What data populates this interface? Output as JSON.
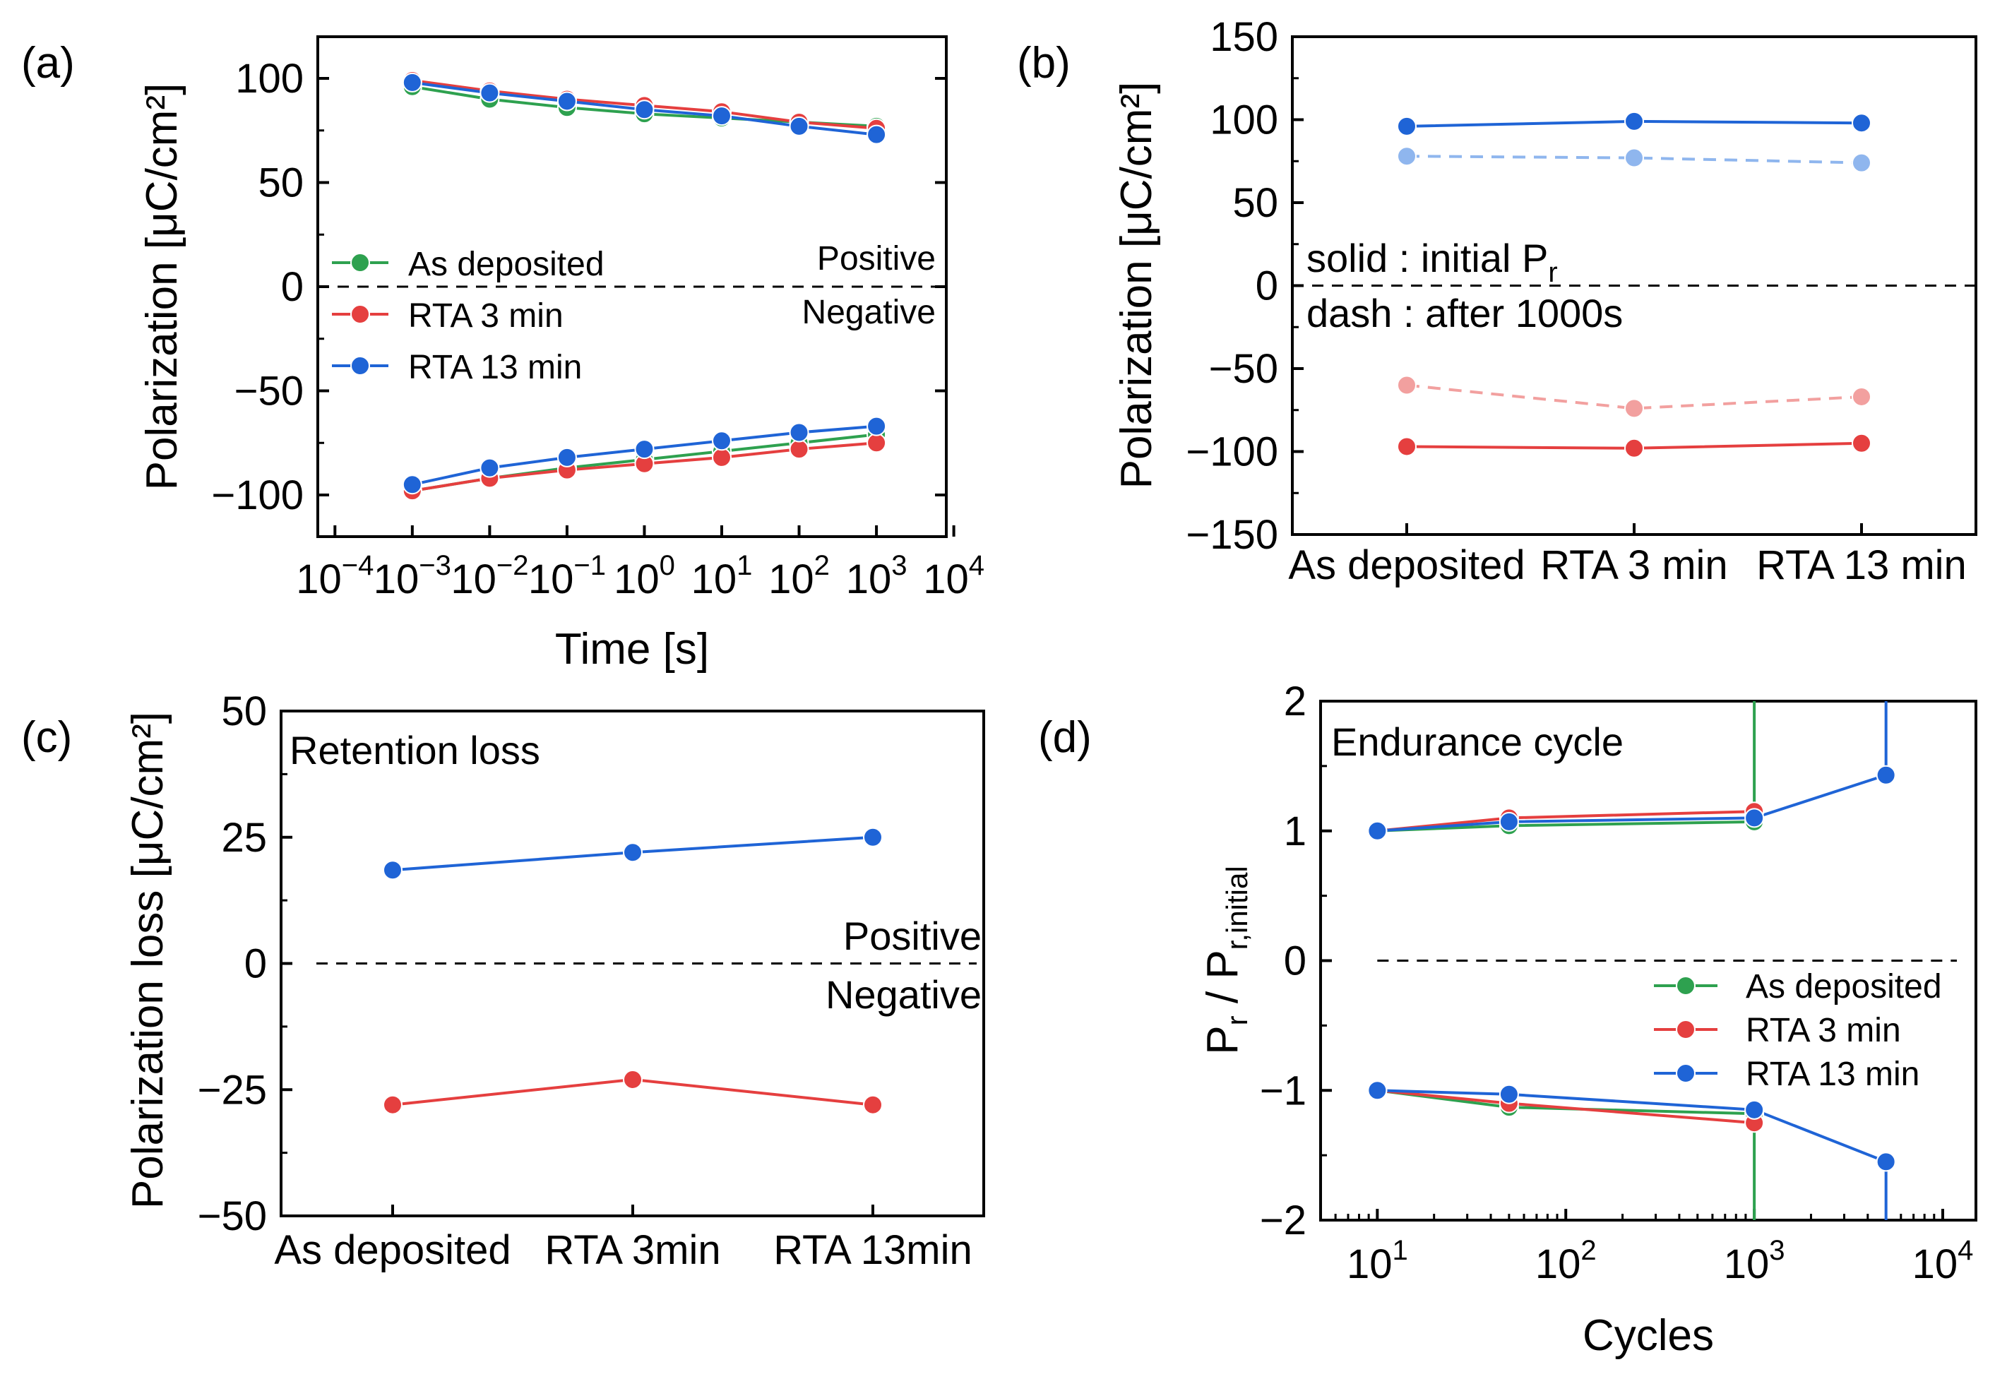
{
  "colors": {
    "green": "#2ea14f",
    "red": "#e53f3f",
    "blue": "#1f64d6",
    "light_blue": "#8fb6ee",
    "light_red": "#f2a09f"
  },
  "chart_data": [
    {
      "panel_label": "(a)",
      "type": "line",
      "x_scale": "log",
      "xlabel": "Time [s]",
      "ylabel": "Polarization [μC/cm²]",
      "xlim": [
        6e-05,
        8000
      ],
      "ylim": [
        -120,
        120
      ],
      "x_ticks": [
        0.0001,
        0.001,
        0.01,
        0.1,
        1,
        10,
        100,
        1000,
        10000
      ],
      "x_tick_labels": [
        [
          "10",
          "−4"
        ],
        [
          "10",
          "−3"
        ],
        [
          "10",
          "−2"
        ],
        [
          "10",
          "−1"
        ],
        [
          "10",
          "0"
        ],
        [
          "10",
          "1"
        ],
        [
          "10",
          "2"
        ],
        [
          "10",
          "3"
        ],
        [
          "10",
          "4"
        ]
      ],
      "y_ticks": [
        100,
        50,
        0,
        -50,
        -100
      ],
      "y_tick_labels": [
        "100",
        "50",
        "0",
        "−50",
        "−100"
      ],
      "x": [
        0.001,
        0.01,
        0.1,
        1,
        10,
        100,
        1000
      ],
      "series": [
        {
          "name": "As deposited",
          "color": "green",
          "positive": [
            96,
            90,
            86,
            83,
            81,
            79,
            77
          ],
          "negative": [
            -98,
            -92,
            -87,
            -83,
            -79,
            -75,
            -71
          ]
        },
        {
          "name": "RTA 3 min",
          "color": "red",
          "positive": [
            99,
            94,
            90,
            87,
            84,
            79,
            76
          ],
          "negative": [
            -98,
            -92,
            -88,
            -85,
            -82,
            -78,
            -75
          ]
        },
        {
          "name": "RTA 13 min",
          "color": "blue",
          "positive": [
            98,
            93,
            89,
            85,
            82,
            77,
            73
          ],
          "negative": [
            -95,
            -87,
            -82,
            -78,
            -74,
            -70,
            -67
          ]
        }
      ],
      "annotations": {
        "positive": "Positive",
        "negative": "Negative"
      },
      "legend": "center-left"
    },
    {
      "panel_label": "(b)",
      "type": "line",
      "categories": [
        "As deposited",
        "RTA 3 min",
        "RTA 13 min"
      ],
      "ylabel": "Polarization [μC/cm²]",
      "ylim": [
        -150,
        150
      ],
      "y_ticks": [
        150,
        100,
        50,
        0,
        -50,
        -100,
        -150
      ],
      "y_tick_labels": [
        "150",
        "100",
        "50",
        "0",
        "−50",
        "−100",
        "−150"
      ],
      "series": [
        {
          "name": "Positive initial Pr",
          "style": "solid",
          "color": "blue",
          "values": [
            96,
            99,
            98
          ]
        },
        {
          "name": "Positive after 1000s",
          "style": "dash",
          "color": "light_blue",
          "values": [
            78,
            77,
            74
          ]
        },
        {
          "name": "Negative after 1000s",
          "style": "dash",
          "color": "light_red",
          "values": [
            -60,
            -74,
            -67
          ]
        },
        {
          "name": "Negative initial Pr",
          "style": "solid",
          "color": "red",
          "values": [
            -97,
            -98,
            -95
          ]
        }
      ],
      "annotations": {
        "solid_prefix": "solid : initial P",
        "solid_sub": "r",
        "dash": "dash : after 1000s"
      }
    },
    {
      "panel_label": "(c)",
      "type": "line",
      "title": "Retention loss",
      "categories": [
        "As deposited",
        "RTA 3min",
        "RTA 13min"
      ],
      "ylabel": "Polarization loss [μC/cm²]",
      "ylim": [
        -50,
        50
      ],
      "y_ticks": [
        50,
        25,
        0,
        -25,
        -50
      ],
      "y_tick_labels": [
        "50",
        "25",
        "0",
        "−25",
        "−50"
      ],
      "series": [
        {
          "name": "Positive",
          "color": "blue",
          "values": [
            18.5,
            22,
            25
          ]
        },
        {
          "name": "Negative",
          "color": "red",
          "values": [
            -28,
            -23,
            -28
          ]
        }
      ],
      "annotations": {
        "positive": "Positive",
        "negative": "Negative"
      }
    },
    {
      "panel_label": "(d)",
      "type": "line",
      "title": "Endurance cycle",
      "x_scale": "log",
      "xlabel": "Cycles",
      "ylabel_main": "P",
      "ylabel_sub1": "r",
      "ylabel_mid": " / P",
      "ylabel_sub2": "r,initial",
      "xlim": [
        5,
        15000
      ],
      "ylim": [
        -2,
        2
      ],
      "x_ticks": [
        10,
        100,
        1000,
        10000
      ],
      "x_tick_labels": [
        [
          "10",
          "1"
        ],
        [
          "10",
          "2"
        ],
        [
          "10",
          "3"
        ],
        [
          "10",
          "4"
        ]
      ],
      "y_ticks": [
        2,
        1,
        0,
        -1,
        -2
      ],
      "y_tick_labels": [
        "2",
        "1",
        "0",
        "−1",
        "−2"
      ],
      "series": [
        {
          "name": "As deposited",
          "color": "green",
          "x": [
            10,
            50,
            1000
          ],
          "positive": [
            1.0,
            1.04,
            1.07
          ],
          "negative": [
            -1.0,
            -1.13,
            -1.18
          ],
          "breakdown_after": 1000
        },
        {
          "name": "RTA 3 min",
          "color": "red",
          "x": [
            10,
            50,
            1000
          ],
          "positive": [
            1.0,
            1.1,
            1.15
          ],
          "negative": [
            -1.0,
            -1.1,
            -1.25
          ]
        },
        {
          "name": "RTA 13 min",
          "color": "blue",
          "x": [
            10,
            50,
            1000,
            5000
          ],
          "positive": [
            1.0,
            1.07,
            1.1,
            1.43
          ],
          "negative": [
            -1.0,
            -1.03,
            -1.15,
            -1.55
          ],
          "breakdown_after": 5000
        }
      ],
      "legend": "bottom-right"
    }
  ]
}
